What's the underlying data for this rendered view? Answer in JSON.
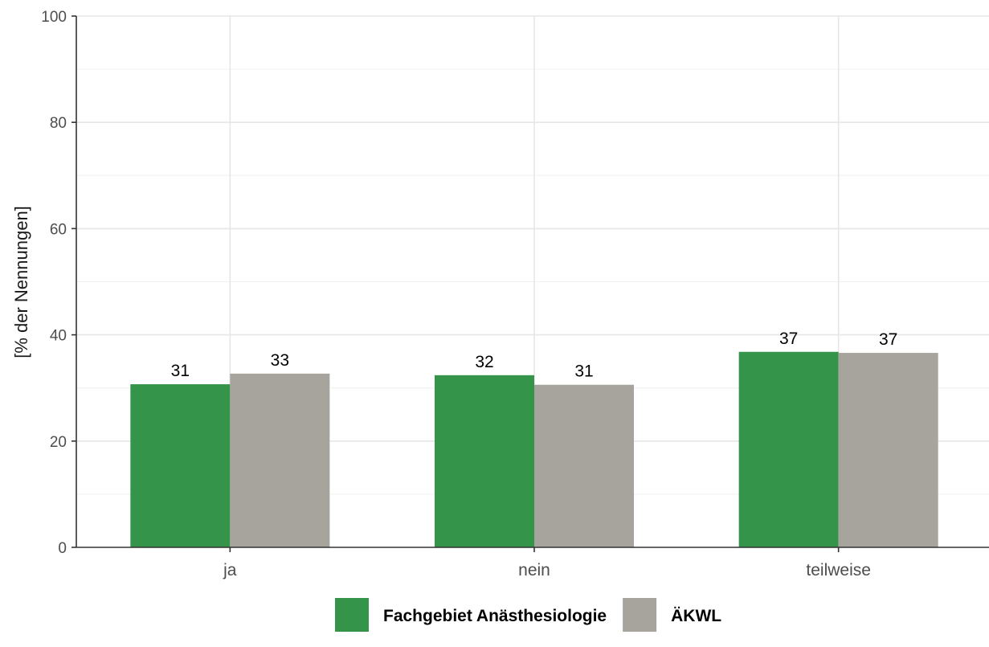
{
  "chart_data": {
    "type": "bar",
    "categories": [
      "ja",
      "nein",
      "teilweise"
    ],
    "series": [
      {
        "name": "Fachgebiet Anästhesiologie",
        "color": "#33944a",
        "values": [
          30.7,
          32.4,
          36.8
        ],
        "labels": [
          "31",
          "32",
          "37"
        ]
      },
      {
        "name": "ÄKWL",
        "color": "#a7a49d",
        "values": [
          32.7,
          30.6,
          36.6
        ],
        "labels": [
          "33",
          "31",
          "37"
        ]
      }
    ],
    "title": "",
    "xlabel": "",
    "ylabel": "[% der Nennungen]",
    "ylim": [
      0,
      100
    ],
    "yticks": [
      0,
      20,
      40,
      60,
      80,
      100
    ],
    "grid": true,
    "legend": "bottom"
  }
}
